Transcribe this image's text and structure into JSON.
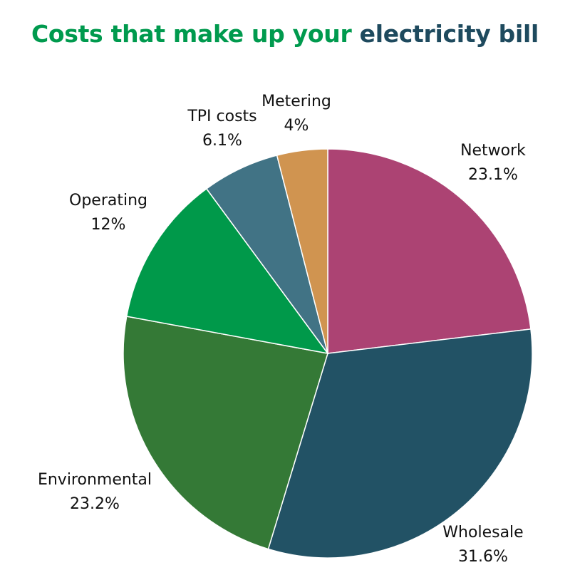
{
  "title": {
    "part1": "Costs that make up your ",
    "part2": "electricity bill",
    "color1": "#009a4e",
    "color2": "#1e4a5e"
  },
  "chart_data": {
    "type": "pie",
    "title": "Costs that make up your electricity bill",
    "slices": [
      {
        "name": "Network",
        "label": "23.1%",
        "value": 23.1,
        "color": "#ac4373"
      },
      {
        "name": "Wholesale",
        "label": "31.6%",
        "value": 31.6,
        "color": "#225265"
      },
      {
        "name": "Environmental",
        "label": "23.2%",
        "value": 23.2,
        "color": "#347936"
      },
      {
        "name": "Operating",
        "label": "12%",
        "value": 12,
        "color": "#00994a"
      },
      {
        "name": "TPI costs",
        "label": "6.1%",
        "value": 6.1,
        "color": "#417385"
      },
      {
        "name": "Metering",
        "label": "4%",
        "value": 4,
        "color": "#d09450"
      }
    ]
  }
}
